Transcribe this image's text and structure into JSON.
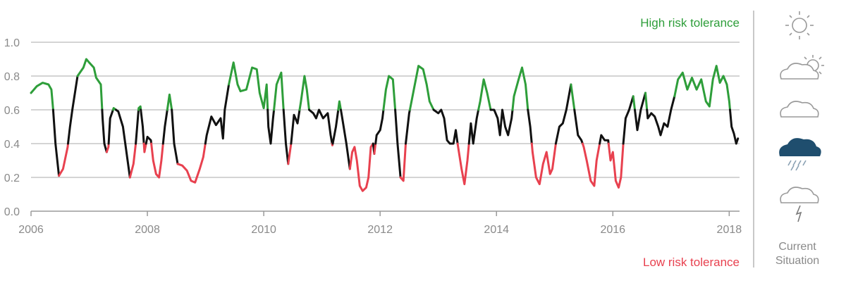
{
  "chart_data": {
    "type": "line",
    "title": "",
    "xlabel": "",
    "ylabel": "",
    "xlim": [
      2006,
      2018.2
    ],
    "ylim": [
      0,
      1.0
    ],
    "grid": true,
    "x_ticks": [
      2006,
      2008,
      2010,
      2012,
      2014,
      2016,
      2018
    ],
    "x_tick_labels": [
      "2006",
      "2008",
      "2010",
      "2012",
      "2014",
      "2016",
      "2018"
    ],
    "y_ticks": [
      0,
      0.2,
      0.4,
      0.6,
      0.8,
      1.0
    ],
    "y_tick_labels": [
      "0.0",
      "0.2",
      "0.4",
      "0.6",
      "0.8",
      "1.0"
    ],
    "thresholds": {
      "high": 0.6,
      "low": 0.4
    },
    "colors": {
      "high": "#2e9e3a",
      "mid": "#111111",
      "low": "#e8414f",
      "grid": "#a9a9a9",
      "axis": "#9a9a9a",
      "icon_outline": "#9a9a9a",
      "current_icon": "#1f4e6e"
    },
    "annotations": {
      "high": "High risk tolerance",
      "low": "Low risk tolerance"
    },
    "series": [
      {
        "values": [
          [
            2006.0,
            0.7
          ],
          [
            2006.1,
            0.74
          ],
          [
            2006.2,
            0.76
          ],
          [
            2006.3,
            0.75
          ],
          [
            2006.35,
            0.72
          ],
          [
            2006.38,
            0.6
          ],
          [
            2006.42,
            0.4
          ],
          [
            2006.48,
            0.21
          ],
          [
            2006.55,
            0.25
          ],
          [
            2006.63,
            0.38
          ],
          [
            2006.67,
            0.5
          ],
          [
            2006.71,
            0.6
          ],
          [
            2006.8,
            0.8
          ],
          [
            2006.9,
            0.85
          ],
          [
            2006.95,
            0.9
          ],
          [
            2007.0,
            0.88
          ],
          [
            2007.08,
            0.85
          ],
          [
            2007.12,
            0.79
          ],
          [
            2007.2,
            0.75
          ],
          [
            2007.23,
            0.55
          ],
          [
            2007.26,
            0.4
          ],
          [
            2007.3,
            0.35
          ],
          [
            2007.33,
            0.38
          ],
          [
            2007.36,
            0.55
          ],
          [
            2007.42,
            0.61
          ],
          [
            2007.5,
            0.59
          ],
          [
            2007.58,
            0.5
          ],
          [
            2007.62,
            0.4
          ],
          [
            2007.7,
            0.2
          ],
          [
            2007.76,
            0.28
          ],
          [
            2007.8,
            0.4
          ],
          [
            2007.85,
            0.61
          ],
          [
            2007.88,
            0.62
          ],
          [
            2007.92,
            0.5
          ],
          [
            2007.95,
            0.35
          ],
          [
            2008.0,
            0.44
          ],
          [
            2008.06,
            0.42
          ],
          [
            2008.1,
            0.3
          ],
          [
            2008.15,
            0.22
          ],
          [
            2008.2,
            0.2
          ],
          [
            2008.24,
            0.3
          ],
          [
            2008.3,
            0.5
          ],
          [
            2008.38,
            0.69
          ],
          [
            2008.42,
            0.6
          ],
          [
            2008.46,
            0.4
          ],
          [
            2008.52,
            0.28
          ],
          [
            2008.6,
            0.27
          ],
          [
            2008.68,
            0.24
          ],
          [
            2008.75,
            0.18
          ],
          [
            2008.82,
            0.17
          ],
          [
            2008.9,
            0.25
          ],
          [
            2008.96,
            0.32
          ],
          [
            2009.02,
            0.45
          ],
          [
            2009.1,
            0.56
          ],
          [
            2009.18,
            0.51
          ],
          [
            2009.26,
            0.55
          ],
          [
            2009.3,
            0.43
          ],
          [
            2009.33,
            0.6
          ],
          [
            2009.4,
            0.75
          ],
          [
            2009.48,
            0.88
          ],
          [
            2009.55,
            0.75
          ],
          [
            2009.6,
            0.71
          ],
          [
            2009.7,
            0.72
          ],
          [
            2009.8,
            0.85
          ],
          [
            2009.88,
            0.84
          ],
          [
            2009.93,
            0.7
          ],
          [
            2010.0,
            0.61
          ],
          [
            2010.05,
            0.75
          ],
          [
            2010.08,
            0.5
          ],
          [
            2010.12,
            0.4
          ],
          [
            2010.16,
            0.55
          ],
          [
            2010.22,
            0.75
          ],
          [
            2010.3,
            0.82
          ],
          [
            2010.34,
            0.6
          ],
          [
            2010.38,
            0.4
          ],
          [
            2010.42,
            0.28
          ],
          [
            2010.47,
            0.4
          ],
          [
            2010.52,
            0.57
          ],
          [
            2010.58,
            0.52
          ],
          [
            2010.64,
            0.65
          ],
          [
            2010.7,
            0.8
          ],
          [
            2010.74,
            0.72
          ],
          [
            2010.78,
            0.6
          ],
          [
            2010.85,
            0.58
          ],
          [
            2010.9,
            0.55
          ],
          [
            2010.95,
            0.6
          ],
          [
            2011.02,
            0.55
          ],
          [
            2011.1,
            0.58
          ],
          [
            2011.15,
            0.45
          ],
          [
            2011.18,
            0.39
          ],
          [
            2011.24,
            0.5
          ],
          [
            2011.3,
            0.65
          ],
          [
            2011.35,
            0.55
          ],
          [
            2011.42,
            0.4
          ],
          [
            2011.48,
            0.25
          ],
          [
            2011.52,
            0.35
          ],
          [
            2011.56,
            0.38
          ],
          [
            2011.6,
            0.3
          ],
          [
            2011.65,
            0.15
          ],
          [
            2011.7,
            0.12
          ],
          [
            2011.76,
            0.14
          ],
          [
            2011.8,
            0.2
          ],
          [
            2011.84,
            0.38
          ],
          [
            2011.88,
            0.4
          ],
          [
            2011.9,
            0.34
          ],
          [
            2011.94,
            0.45
          ],
          [
            2012.0,
            0.48
          ],
          [
            2012.04,
            0.55
          ],
          [
            2012.1,
            0.72
          ],
          [
            2012.15,
            0.8
          ],
          [
            2012.22,
            0.78
          ],
          [
            2012.26,
            0.6
          ],
          [
            2012.3,
            0.4
          ],
          [
            2012.35,
            0.2
          ],
          [
            2012.4,
            0.18
          ],
          [
            2012.44,
            0.4
          ],
          [
            2012.5,
            0.58
          ],
          [
            2012.58,
            0.72
          ],
          [
            2012.66,
            0.86
          ],
          [
            2012.74,
            0.84
          ],
          [
            2012.8,
            0.75
          ],
          [
            2012.85,
            0.65
          ],
          [
            2012.92,
            0.6
          ],
          [
            2013.0,
            0.58
          ],
          [
            2013.05,
            0.6
          ],
          [
            2013.1,
            0.55
          ],
          [
            2013.15,
            0.42
          ],
          [
            2013.2,
            0.4
          ],
          [
            2013.26,
            0.4
          ],
          [
            2013.3,
            0.48
          ],
          [
            2013.34,
            0.38
          ],
          [
            2013.4,
            0.25
          ],
          [
            2013.45,
            0.16
          ],
          [
            2013.5,
            0.3
          ],
          [
            2013.56,
            0.52
          ],
          [
            2013.6,
            0.4
          ],
          [
            2013.66,
            0.55
          ],
          [
            2013.72,
            0.65
          ],
          [
            2013.78,
            0.78
          ],
          [
            2013.84,
            0.7
          ],
          [
            2013.9,
            0.6
          ],
          [
            2013.96,
            0.6
          ],
          [
            2014.02,
            0.55
          ],
          [
            2014.06,
            0.45
          ],
          [
            2014.1,
            0.6
          ],
          [
            2014.15,
            0.5
          ],
          [
            2014.2,
            0.45
          ],
          [
            2014.26,
            0.55
          ],
          [
            2014.3,
            0.68
          ],
          [
            2014.38,
            0.78
          ],
          [
            2014.44,
            0.85
          ],
          [
            2014.5,
            0.75
          ],
          [
            2014.54,
            0.6
          ],
          [
            2014.58,
            0.5
          ],
          [
            2014.62,
            0.35
          ],
          [
            2014.68,
            0.2
          ],
          [
            2014.74,
            0.16
          ],
          [
            2014.8,
            0.28
          ],
          [
            2014.86,
            0.35
          ],
          [
            2014.92,
            0.22
          ],
          [
            2014.96,
            0.25
          ],
          [
            2015.02,
            0.4
          ],
          [
            2015.08,
            0.5
          ],
          [
            2015.14,
            0.52
          ],
          [
            2015.2,
            0.6
          ],
          [
            2015.28,
            0.75
          ],
          [
            2015.34,
            0.6
          ],
          [
            2015.4,
            0.45
          ],
          [
            2015.46,
            0.42
          ],
          [
            2015.5,
            0.38
          ],
          [
            2015.55,
            0.3
          ],
          [
            2015.62,
            0.18
          ],
          [
            2015.68,
            0.15
          ],
          [
            2015.72,
            0.3
          ],
          [
            2015.8,
            0.45
          ],
          [
            2015.86,
            0.42
          ],
          [
            2015.92,
            0.42
          ],
          [
            2015.96,
            0.3
          ],
          [
            2016.0,
            0.35
          ],
          [
            2016.05,
            0.18
          ],
          [
            2016.1,
            0.14
          ],
          [
            2016.14,
            0.2
          ],
          [
            2016.18,
            0.4
          ],
          [
            2016.22,
            0.55
          ],
          [
            2016.28,
            0.6
          ],
          [
            2016.35,
            0.68
          ],
          [
            2016.42,
            0.48
          ],
          [
            2016.48,
            0.6
          ],
          [
            2016.56,
            0.7
          ],
          [
            2016.6,
            0.55
          ],
          [
            2016.66,
            0.58
          ],
          [
            2016.72,
            0.56
          ],
          [
            2016.78,
            0.5
          ],
          [
            2016.82,
            0.45
          ],
          [
            2016.88,
            0.52
          ],
          [
            2016.94,
            0.5
          ],
          [
            2017.0,
            0.6
          ],
          [
            2017.06,
            0.68
          ],
          [
            2017.12,
            0.78
          ],
          [
            2017.2,
            0.82
          ],
          [
            2017.28,
            0.72
          ],
          [
            2017.36,
            0.79
          ],
          [
            2017.44,
            0.72
          ],
          [
            2017.52,
            0.78
          ],
          [
            2017.6,
            0.65
          ],
          [
            2017.66,
            0.62
          ],
          [
            2017.72,
            0.78
          ],
          [
            2017.78,
            0.86
          ],
          [
            2017.84,
            0.76
          ],
          [
            2017.9,
            0.8
          ],
          [
            2017.96,
            0.75
          ],
          [
            2018.0,
            0.65
          ],
          [
            2018.04,
            0.5
          ],
          [
            2018.08,
            0.46
          ],
          [
            2018.12,
            0.4
          ],
          [
            2018.15,
            0.43
          ]
        ]
      }
    ]
  },
  "sidebar": {
    "label_line1": "Current",
    "label_line2": "Situation",
    "icons": [
      "sun-icon",
      "sun-cloud-icon",
      "cloud-icon",
      "rain-cloud-icon",
      "storm-cloud-icon"
    ],
    "current_index": 3
  }
}
